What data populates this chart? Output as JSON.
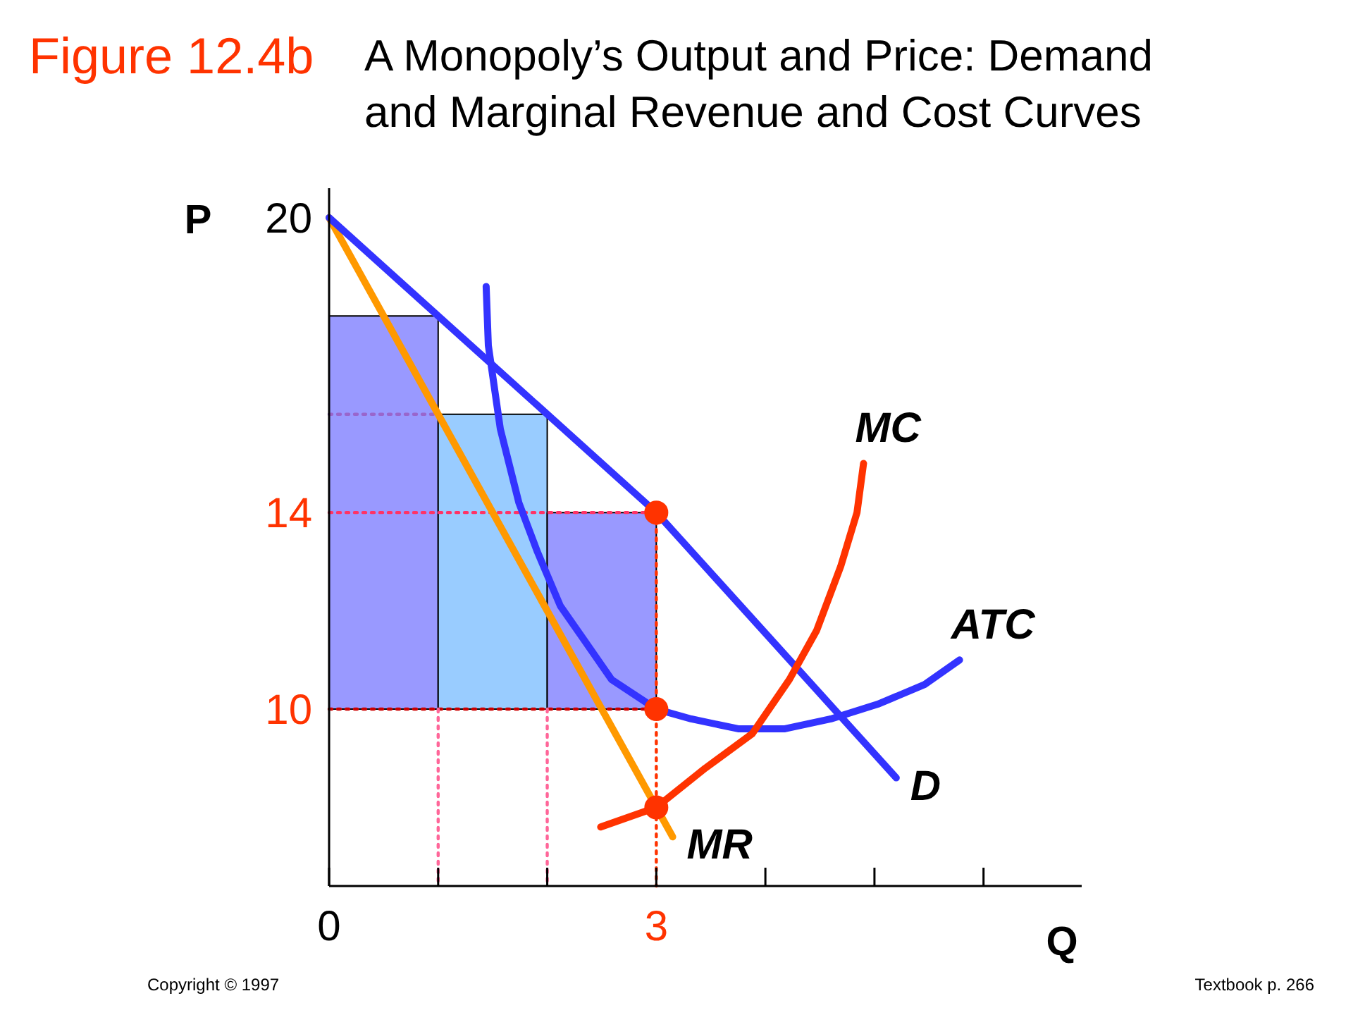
{
  "chart_data": {
    "type": "line",
    "title": "A Monopoly’s Output and Price: Demand and Marginal Revenue and Cost Curves",
    "xlabel": "Q",
    "ylabel": "P",
    "annotations": [
      "Figure 12.4b",
      "Copyright © 1997",
      "Textbook p. 266"
    ],
    "xlim": [
      0,
      6.9
    ],
    "ylim": [
      6.4,
      20.6
    ],
    "xticks": [
      0,
      {
        "value": 1,
        "label": null
      },
      {
        "value": 2,
        "label": null
      },
      3,
      {
        "value": 4,
        "label": null
      },
      {
        "value": 5,
        "label": null
      },
      {
        "value": 6,
        "label": null
      }
    ],
    "yticks": [
      10,
      14,
      20
    ],
    "grid": false,
    "series": [
      {
        "type": "bar",
        "x": [
          0.5,
          1.5,
          2.5
        ],
        "base": [
          10,
          10,
          10
        ],
        "values": [
          8,
          6,
          4
        ],
        "colors": [
          "#9999ff",
          "#99ccff",
          "#9999ff"
        ]
      },
      {
        "x": [
          0,
          3
        ],
        "values": [
          14,
          14
        ],
        "color": "#ff3366",
        "line_style": "dotted"
      },
      {
        "x": [
          0,
          3
        ],
        "values": [
          10,
          10
        ],
        "color": "#cc0000",
        "line_style": "dotted"
      },
      {
        "x": [
          3,
          3
        ],
        "values": [
          14,
          6.4
        ],
        "color": "#ff3300",
        "line_style": "dotted"
      },
      {
        "x": [
          1,
          1
        ],
        "values": [
          10,
          6.4
        ],
        "color": "#ff6699",
        "line_style": "dotted"
      },
      {
        "x": [
          2,
          2
        ],
        "values": [
          10,
          6.4
        ],
        "color": "#ff6699",
        "line_style": "dotted"
      },
      {
        "x": [
          0,
          1
        ],
        "values": [
          16,
          16
        ],
        "color": "#9966cc",
        "line_style": "dotted"
      },
      {
        "name": "MR",
        "x": [
          0,
          3.15
        ],
        "values": [
          20,
          7.4
        ],
        "color": "#ff9900"
      },
      {
        "name": "ATC",
        "x": [
          1.44,
          1.46,
          1.57,
          1.74,
          1.91,
          2.12,
          2.34,
          2.59,
          3,
          3.32,
          3.75,
          4.18,
          4.6,
          5.03,
          5.46,
          5.78
        ],
        "values": [
          18.6,
          17.4,
          15.7,
          14.2,
          13.2,
          12.1,
          11.4,
          10.6,
          10,
          9.8,
          9.6,
          9.6,
          9.8,
          10.1,
          10.5,
          11.0
        ],
        "color": "#3333ff"
      },
      {
        "name": "D",
        "x": [
          0,
          3,
          5.2
        ],
        "values": [
          20,
          14,
          8.6
        ],
        "color": "#3333ff"
      },
      {
        "name": "MC",
        "x": [
          2.49,
          3,
          3.45,
          3.88,
          4.22,
          4.47,
          4.69,
          4.84,
          4.9
        ],
        "values": [
          7.6,
          8,
          8.8,
          9.5,
          10.6,
          11.6,
          12.9,
          14.0,
          15.0
        ],
        "color": "#ff3300"
      },
      {
        "type": "scatter",
        "x": [
          3,
          3,
          3
        ],
        "values": [
          14,
          10,
          8
        ],
        "color": "#ff3300",
        "marker": "circle"
      }
    ]
  }
}
